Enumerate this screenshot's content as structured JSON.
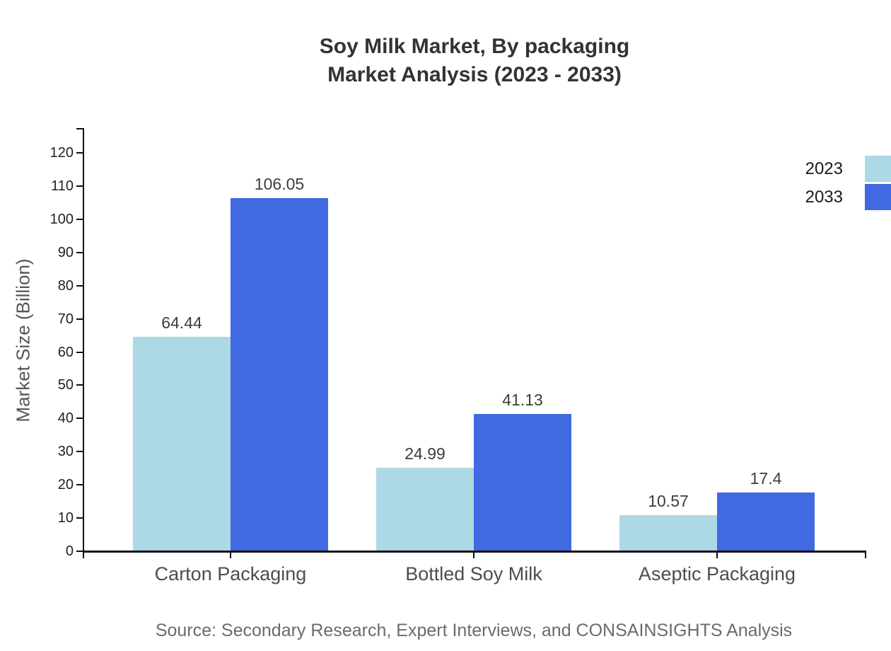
{
  "title": {
    "line1": "Soy Milk Market, By packaging",
    "line2": "Market Analysis (2023 - 2033)"
  },
  "source_text": "Source: Secondary Research, Expert Interviews, and CONSAINSIGHTS Analysis",
  "legend": {
    "position": "right-top",
    "items": [
      {
        "label": "2023",
        "color": "#ADD8E6"
      },
      {
        "label": "2033",
        "color": "#4169E1"
      }
    ]
  },
  "chart_data": {
    "type": "bar",
    "title": "Soy Milk Market, By packaging Market Analysis (2023 - 2033)",
    "categories": [
      "Carton Packaging",
      "Bottled Soy Milk",
      "Aseptic Packaging"
    ],
    "series": [
      {
        "name": "2023",
        "color": "#ADD8E6",
        "values": [
          64.44,
          24.99,
          10.57
        ],
        "labels": [
          "64.44",
          "24.99",
          "10.57"
        ]
      },
      {
        "name": "2033",
        "color": "#4169E1",
        "values": [
          106.05,
          41.13,
          17.4
        ],
        "labels": [
          "106.05",
          "41.13",
          "17.4"
        ]
      }
    ],
    "xlabel": "",
    "ylabel": "Market Size (Billion)",
    "ylim": [
      0,
      120
    ],
    "yticks": [
      0,
      10,
      20,
      30,
      40,
      50,
      60,
      70,
      80,
      90,
      100,
      110,
      120
    ],
    "grid": false,
    "value_labels": true,
    "legend_position": "right-top"
  },
  "colors": {
    "series_2023": "#ADD8E6",
    "series_2033": "#4169E1",
    "axis": "#111111",
    "title_text": "#333333",
    "tick_text": "#222222",
    "category_text": "#4d4d4d",
    "axis_title_text": "#555555",
    "source_text": "#6b6b6b",
    "background": "#ffffff"
  }
}
